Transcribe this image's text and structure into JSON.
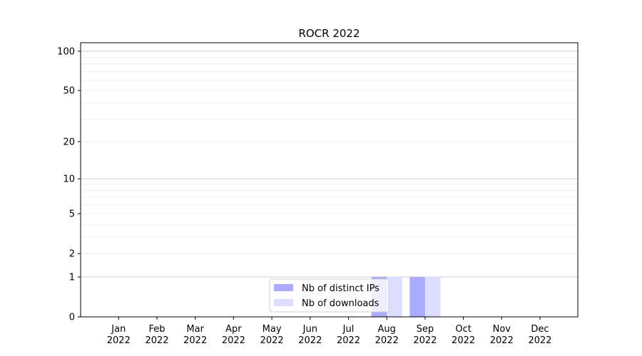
{
  "chart_data": {
    "type": "bar",
    "title": "ROCR 2022",
    "xlabel": "",
    "ylabel": "",
    "yscale": "log(1+y)",
    "ylim": [
      0,
      116
    ],
    "yticks": [
      "0",
      "1",
      "2",
      "5",
      "10",
      "20",
      "50",
      "100"
    ],
    "ytick_values": [
      0,
      1,
      2,
      5,
      10,
      20,
      50,
      100
    ],
    "grid": true,
    "legend_position": "bottom-center",
    "categories": [
      "Jan\n2022",
      "Feb\n2022",
      "Mar\n2022",
      "Apr\n2022",
      "May\n2022",
      "Jun\n2022",
      "Jul\n2022",
      "Aug\n2022",
      "Sep\n2022",
      "Oct\n2022",
      "Nov\n2022",
      "Dec\n2022"
    ],
    "series": [
      {
        "name": "Nb of distinct IPs",
        "color": "#aaaaff",
        "values": [
          0,
          0,
          0,
          0,
          0,
          0,
          0,
          1,
          1,
          0,
          0,
          0
        ]
      },
      {
        "name": "Nb of downloads",
        "color": "#ddddff",
        "values": [
          0,
          0,
          0,
          0,
          0,
          0,
          0,
          1,
          1,
          0,
          0,
          0
        ]
      }
    ]
  }
}
